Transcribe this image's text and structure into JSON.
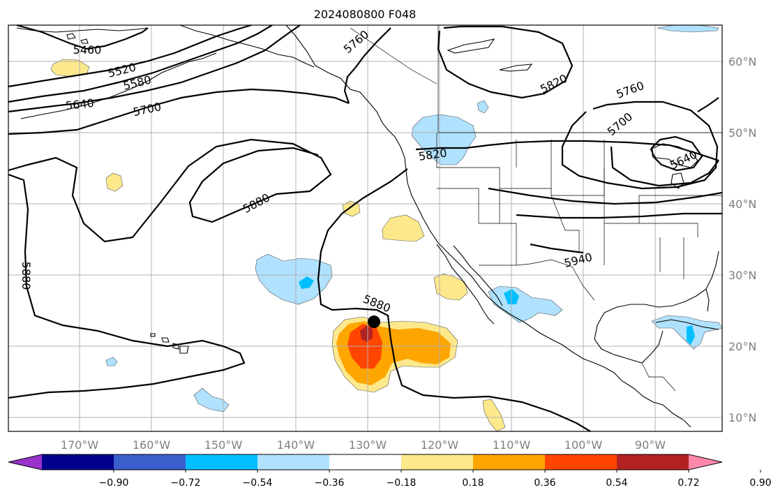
{
  "title": "2024080800 F048",
  "lon_labels": [
    "170°W",
    "160°W",
    "150°W",
    "140°W",
    "130°W",
    "120°W",
    "110°W",
    "100°W",
    "90°W"
  ],
  "lat_labels": [
    "60°N",
    "50°N",
    "40°N",
    "30°N",
    "20°N",
    "10°N"
  ],
  "contour_labels": {
    "c5460": "5460",
    "c5520": "5520",
    "c5580": "5580",
    "c5640": "5640",
    "c5700a": "5700",
    "c5760a": "5760",
    "c5820a": "5820",
    "c5880a": "5880",
    "c5880b": "5880",
    "c5880c": "5880",
    "c5820b": "5820",
    "c5760b": "5760",
    "c5700b": "5700",
    "c5640b": "5640",
    "c5940": "5940"
  },
  "colorbar": {
    "ticks": [
      "−0.90",
      "−0.72",
      "−0.54",
      "−0.36",
      "−0.18",
      "0.18",
      "0.36",
      "0.54",
      "0.72",
      "0.90"
    ],
    "colors": [
      "#9932cc",
      "#00008b",
      "#3a5fcd",
      "#00bfff",
      "#b0e2ff",
      "#ffffff",
      "#fde98c",
      "#ffa500",
      "#ff4500",
      "#b22222",
      "#ff88aa"
    ]
  },
  "storm_marker": "storm-center-dot"
}
